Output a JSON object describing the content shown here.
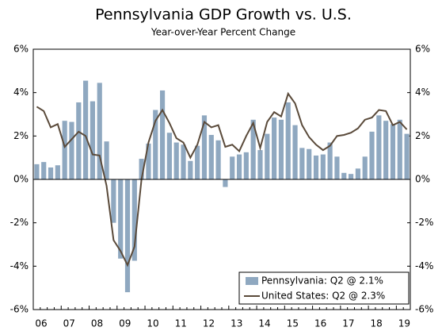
{
  "chart_data": {
    "type": "bar_line",
    "title": "Pennsylvania GDP Growth vs. U.S.",
    "subtitle": "Year-over-Year Percent Change",
    "categories": [
      "06",
      null,
      null,
      null,
      "07",
      null,
      null,
      null,
      "08",
      null,
      null,
      null,
      "09",
      null,
      null,
      null,
      "10",
      null,
      null,
      null,
      "11",
      null,
      null,
      null,
      "12",
      null,
      null,
      null,
      "13",
      null,
      null,
      null,
      "14",
      null,
      null,
      null,
      "15",
      null,
      null,
      null,
      "16",
      null,
      null,
      null,
      "17",
      null,
      null,
      null,
      "18",
      null,
      null,
      null,
      "19",
      null
    ],
    "series": [
      {
        "name": "Pennsylvania: Q2 @ 2.1%",
        "type": "bar",
        "color": "#8fa8c0",
        "values": [
          0.7,
          0.8,
          0.55,
          0.65,
          2.7,
          2.65,
          3.55,
          4.55,
          3.6,
          4.45,
          1.75,
          -2.0,
          -3.65,
          -5.2,
          -3.75,
          0.95,
          1.65,
          3.2,
          4.1,
          2.15,
          1.7,
          1.6,
          0.85,
          1.55,
          2.95,
          2.05,
          1.8,
          -0.35,
          1.05,
          1.15,
          1.25,
          2.75,
          1.35,
          2.1,
          2.85,
          2.75,
          3.55,
          2.5,
          1.45,
          1.4,
          1.1,
          1.15,
          1.7,
          1.05,
          0.3,
          0.25,
          0.5,
          1.05,
          2.2,
          2.95,
          2.7,
          2.55,
          2.75,
          2.1
        ]
      },
      {
        "name": "United States: Q2 @ 2.3%",
        "type": "line",
        "color": "#5a4a3a",
        "values": [
          3.35,
          3.15,
          2.4,
          2.55,
          1.5,
          1.85,
          2.2,
          2.0,
          1.15,
          1.1,
          -0.3,
          -2.8,
          -3.3,
          -3.95,
          -3.1,
          0.0,
          1.7,
          2.7,
          3.2,
          2.6,
          1.9,
          1.7,
          1.0,
          1.6,
          2.65,
          2.4,
          2.5,
          1.5,
          1.6,
          1.3,
          2.0,
          2.6,
          1.45,
          2.65,
          3.1,
          2.9,
          3.95,
          3.5,
          2.5,
          1.95,
          1.6,
          1.35,
          1.55,
          2.0,
          2.05,
          2.15,
          2.35,
          2.75,
          2.85,
          3.2,
          3.15,
          2.5,
          2.65,
          2.3
        ]
      }
    ],
    "ylim": [
      -6,
      6
    ],
    "yticks": [
      {
        "value": -6,
        "label": "-6%"
      },
      {
        "value": -4,
        "label": "-4%"
      },
      {
        "value": -2,
        "label": "-2%"
      },
      {
        "value": 0,
        "label": "0%"
      },
      {
        "value": 2,
        "label": "2%"
      },
      {
        "value": 4,
        "label": "4%"
      },
      {
        "value": 6,
        "label": "6%"
      }
    ],
    "y2lim": [
      -6,
      6
    ],
    "y2ticks": [
      {
        "value": -6,
        "label": "-6%"
      },
      {
        "value": -4,
        "label": "-4%"
      },
      {
        "value": -2,
        "label": "-2%"
      },
      {
        "value": 0,
        "label": "0%"
      },
      {
        "value": 2,
        "label": "2%"
      },
      {
        "value": 4,
        "label": "4%"
      },
      {
        "value": 6,
        "label": "6%"
      }
    ],
    "legend": "lower right"
  }
}
